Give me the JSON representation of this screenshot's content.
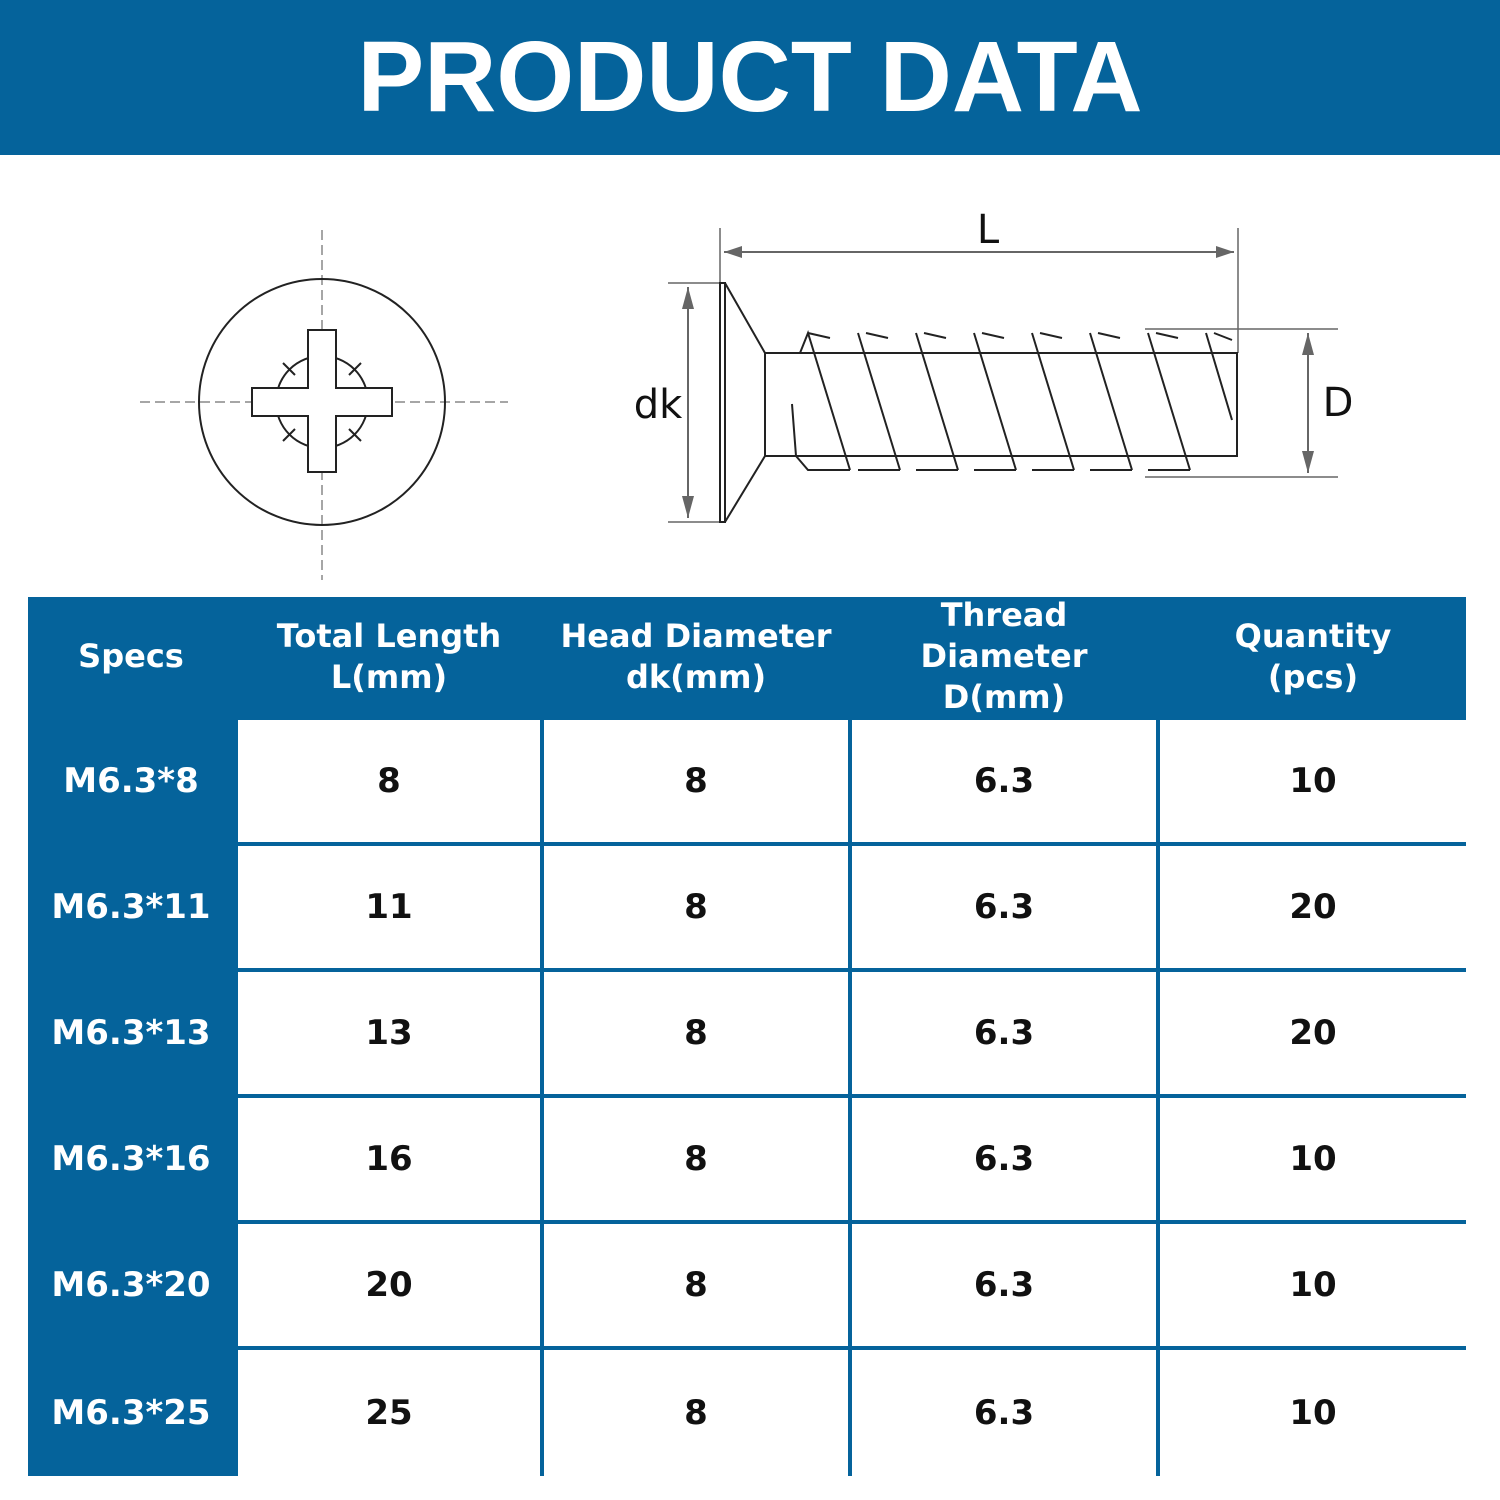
{
  "header": {
    "title": "PRODUCT DATA"
  },
  "diagram": {
    "length_label": "L",
    "head_label": "dk",
    "thread_label": "D"
  },
  "table": {
    "header": [
      [
        "Specs"
      ],
      [
        "Total Length",
        "L(mm)"
      ],
      [
        "Head Diameter",
        "dk(mm)"
      ],
      [
        "Thread Diameter",
        "D(mm)"
      ],
      [
        "Quantity",
        "(pcs)"
      ]
    ],
    "rows": [
      [
        "M6.3*8",
        8,
        8,
        6.3,
        10
      ],
      [
        "M6.3*11",
        11,
        8,
        6.3,
        20
      ],
      [
        "M6.3*13",
        13,
        8,
        6.3,
        20
      ],
      [
        "M6.3*16",
        16,
        8,
        6.3,
        10
      ],
      [
        "M6.3*20",
        20,
        8,
        6.3,
        10
      ],
      [
        "M6.3*25",
        25,
        8,
        6.3,
        10
      ]
    ]
  }
}
